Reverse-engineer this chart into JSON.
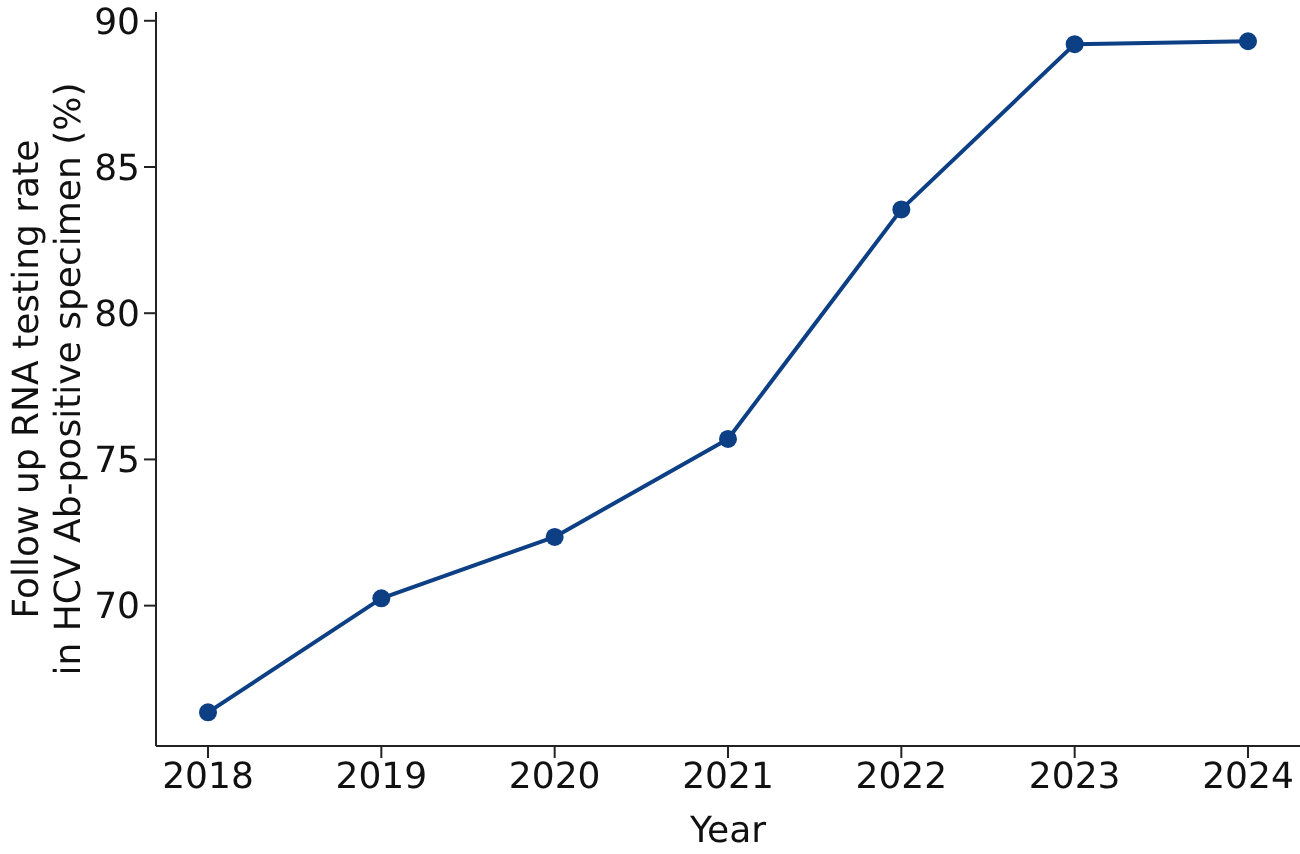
{
  "chart_data": {
    "type": "line",
    "xlabel": "Year",
    "ylabel": "Follow up RNA testing rate\nin HCV Ab-positive specimen (%)",
    "x": [
      2018,
      2019,
      2020,
      2021,
      2022,
      2023,
      2024
    ],
    "series": [
      {
        "color": "#0d3f85",
        "values": [
          66.35,
          70.25,
          72.35,
          75.7,
          83.55,
          89.2,
          89.3
        ]
      }
    ],
    "xlim": [
      2017.7,
      2024.3
    ],
    "xticks": [
      2018,
      2019,
      2020,
      2021,
      2022,
      2023,
      2024
    ],
    "ylim": [
      65.2,
      90.3
    ],
    "yticks": [
      70,
      75,
      80,
      85,
      90
    ],
    "grid": false,
    "legend": false,
    "marker": "circle",
    "line_style": "solid"
  }
}
